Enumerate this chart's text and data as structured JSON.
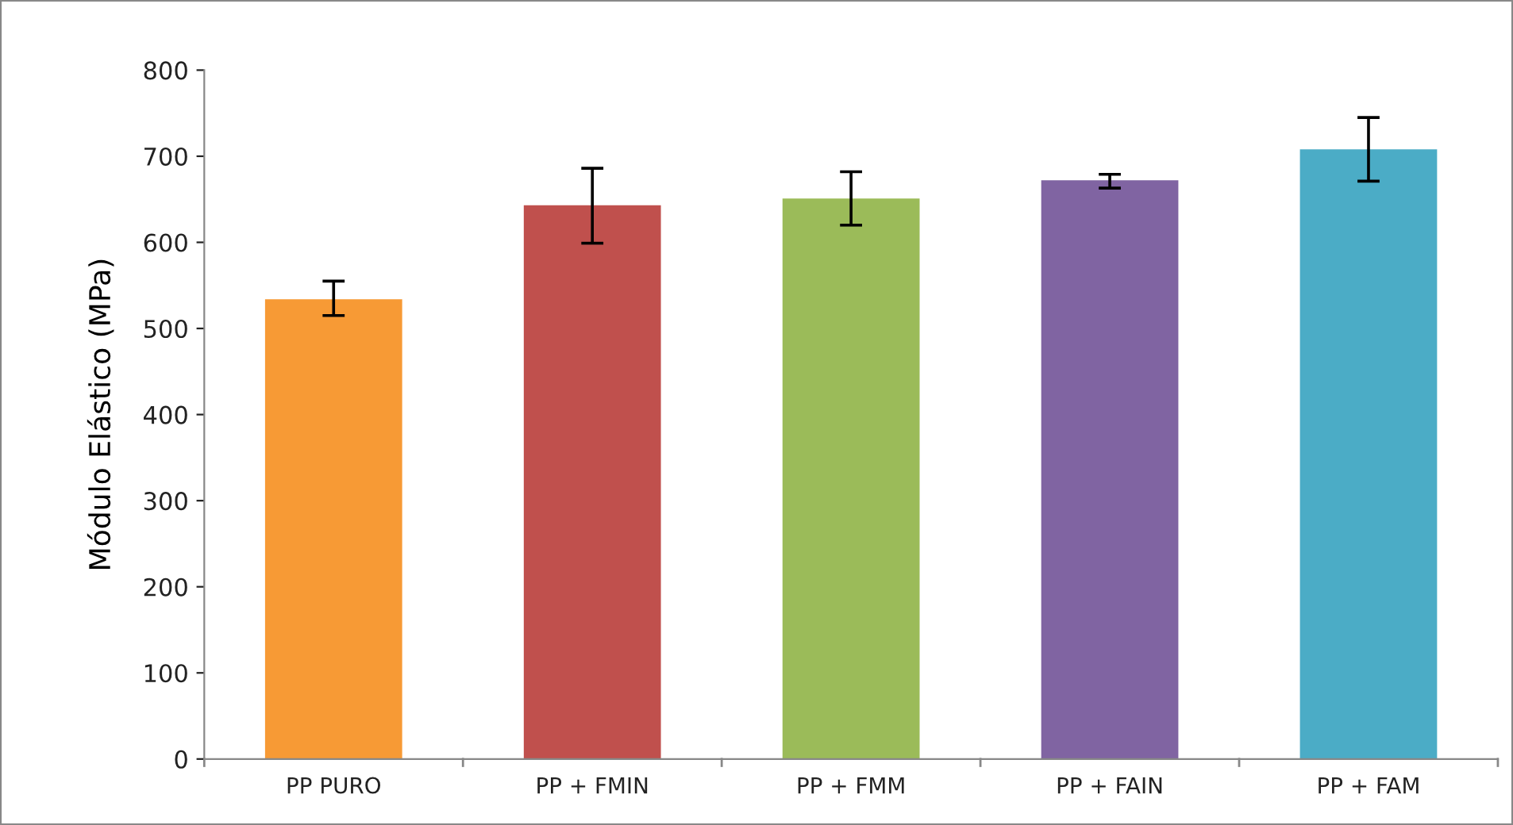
{
  "chart_data": {
    "type": "bar",
    "ylabel": "Módulo Elástico (MPa)",
    "categories": [
      "PP PURO",
      "PP + FMIN",
      "PP + FMM",
      "PP + FAIN",
      "PP + FAM"
    ],
    "values": [
      534,
      643,
      651,
      672,
      708
    ],
    "colors": [
      "#f79a35",
      "#c0504d",
      "#9bbb59",
      "#8064a2",
      "#4bacc6"
    ],
    "errors": [
      [
        515,
        555
      ],
      [
        599,
        686
      ],
      [
        620,
        682
      ],
      [
        663,
        679
      ],
      [
        671,
        745
      ]
    ],
    "ylim": [
      0,
      800
    ],
    "yticks": [
      0,
      100,
      200,
      300,
      400,
      500,
      600,
      700,
      800
    ],
    "grid": false,
    "legend": false
  }
}
